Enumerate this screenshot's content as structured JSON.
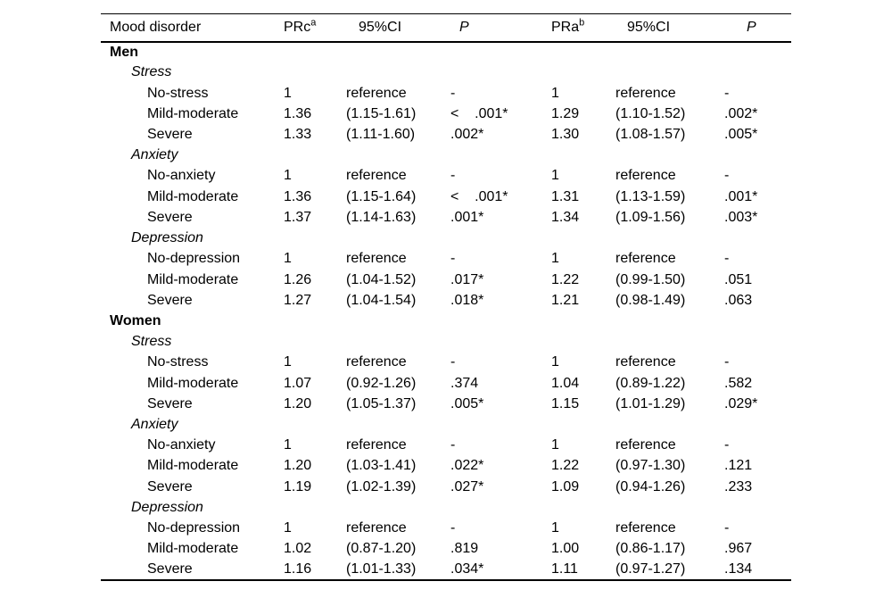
{
  "table": {
    "columns": [
      {
        "label": "Mood disorder",
        "sup": ""
      },
      {
        "label": "PRc",
        "sup": "a"
      },
      {
        "label": "95%CI",
        "sup": ""
      },
      {
        "label": "P",
        "sup": ""
      },
      {
        "label": "PRa",
        "sup": "b"
      },
      {
        "label": "95%CI",
        "sup": ""
      },
      {
        "label": "P",
        "sup": ""
      }
    ],
    "groups": [
      {
        "sex": "Men",
        "conditions": [
          {
            "name": "Stress",
            "rows": [
              {
                "cells": [
                  "No-stress",
                  "1",
                  "reference",
                  "-",
                  "1",
                  "reference",
                  "-"
                ]
              },
              {
                "cells": [
                  "Mild-moderate",
                  "1.36",
                  "(1.15-1.61)",
                  "<    .001*",
                  "1.29",
                  "(1.10-1.52)",
                  ".002*"
                ]
              },
              {
                "cells": [
                  "Severe",
                  "1.33",
                  "(1.11-1.60)",
                  ".002*",
                  "1.30",
                  "(1.08-1.57)",
                  ".005*"
                ]
              }
            ]
          },
          {
            "name": "Anxiety",
            "rows": [
              {
                "cells": [
                  "No-anxiety",
                  "1",
                  "reference",
                  "-",
                  "1",
                  "reference",
                  "-"
                ]
              },
              {
                "cells": [
                  "Mild-moderate",
                  "1.36",
                  "(1.15-1.64)",
                  "<    .001*",
                  "1.31",
                  "(1.13-1.59)",
                  ".001*"
                ]
              },
              {
                "cells": [
                  "Severe",
                  "1.37",
                  "(1.14-1.63)",
                  ".001*",
                  "1.34",
                  "(1.09-1.56)",
                  ".003*"
                ]
              }
            ]
          },
          {
            "name": "Depression",
            "rows": [
              {
                "cells": [
                  "No-depression",
                  "1",
                  "reference",
                  "-",
                  "1",
                  "reference",
                  "-"
                ]
              },
              {
                "cells": [
                  "Mild-moderate",
                  "1.26",
                  "(1.04-1.52)",
                  ".017*",
                  "1.22",
                  "(0.99-1.50)",
                  ".051"
                ]
              },
              {
                "cells": [
                  "Severe",
                  "1.27",
                  "(1.04-1.54)",
                  ".018*",
                  "1.21",
                  "(0.98-1.49)",
                  ".063"
                ]
              }
            ]
          }
        ]
      },
      {
        "sex": "Women",
        "conditions": [
          {
            "name": "Stress",
            "rows": [
              {
                "cells": [
                  "No-stress",
                  "1",
                  "reference",
                  "-",
                  "1",
                  "reference",
                  "-"
                ]
              },
              {
                "cells": [
                  "Mild-moderate",
                  "1.07",
                  "(0.92-1.26)",
                  ".374",
                  "1.04",
                  "(0.89-1.22)",
                  ".582"
                ]
              },
              {
                "cells": [
                  "Severe",
                  "1.20",
                  "(1.05-1.37)",
                  ".005*",
                  "1.15",
                  "(1.01-1.29)",
                  ".029*"
                ]
              }
            ]
          },
          {
            "name": "Anxiety",
            "rows": [
              {
                "cells": [
                  "No-anxiety",
                  "1",
                  "reference",
                  "-",
                  "1",
                  "reference",
                  "-"
                ]
              },
              {
                "cells": [
                  "Mild-moderate",
                  "1.20",
                  "(1.03-1.41)",
                  ".022*",
                  "1.22",
                  "(0.97-1.30)",
                  ".121"
                ]
              },
              {
                "cells": [
                  "Severe",
                  "1.19",
                  "(1.02-1.39)",
                  ".027*",
                  "1.09",
                  "(0.94-1.26)",
                  ".233"
                ]
              }
            ]
          },
          {
            "name": "Depression",
            "rows": [
              {
                "cells": [
                  "No-depression",
                  "1",
                  "reference",
                  "-",
                  "1",
                  "reference",
                  "-"
                ]
              },
              {
                "cells": [
                  "Mild-moderate",
                  "1.02",
                  "(0.87-1.20)",
                  ".819",
                  "1.00",
                  "(0.86-1.17)",
                  ".967"
                ]
              },
              {
                "cells": [
                  "Severe",
                  "1.16",
                  "(1.01-1.33)",
                  ".034*",
                  "1.11",
                  "(0.97-1.27)",
                  ".134"
                ]
              }
            ]
          }
        ]
      }
    ],
    "colors": {
      "text": "#000000",
      "background": "#ffffff",
      "rule": "#000000"
    }
  }
}
